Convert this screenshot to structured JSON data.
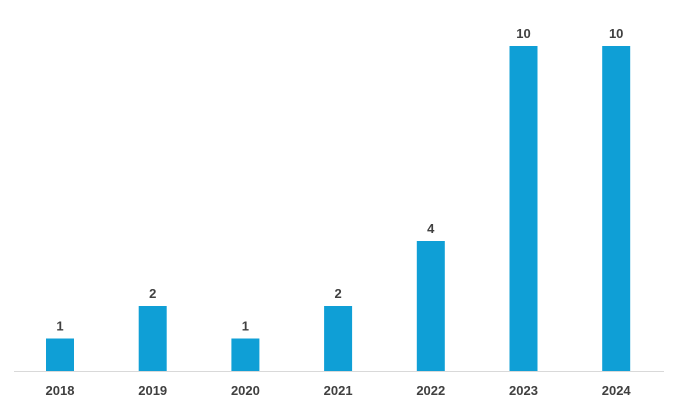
{
  "chart_data": {
    "type": "bar",
    "title": "",
    "xlabel": "",
    "ylabel": "",
    "categories": [
      "2018",
      "2019",
      "2020",
      "2021",
      "2022",
      "2023",
      "2024"
    ],
    "values": [
      1,
      2,
      1,
      2,
      4,
      10,
      10
    ],
    "data_labels": [
      "1",
      "2",
      "1",
      "2",
      "4",
      "10",
      "10"
    ],
    "ylim": [
      0,
      10
    ],
    "grid": false,
    "legend": "none",
    "colors": {
      "bar": "#0f9fd6",
      "axis": "#d9d9d9",
      "text": "#404040"
    }
  }
}
